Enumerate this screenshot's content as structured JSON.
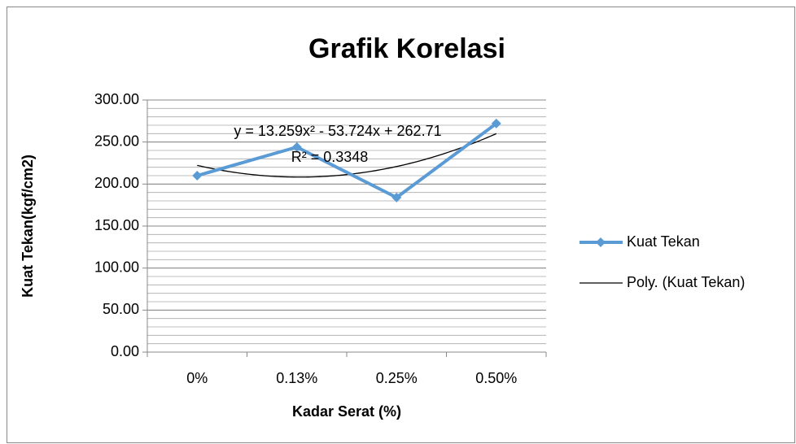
{
  "chart_data": {
    "type": "line",
    "title": "Grafik Korelasi",
    "x_label": "Kadar Serat (%)",
    "y_label": "Kuat Tekan(kgf/cm2)",
    "categories": [
      "0%",
      "0.13%",
      "0.25%",
      "0.50%"
    ],
    "series": [
      {
        "name": "Kuat Tekan",
        "color": "#5b9bd5",
        "values": [
          210,
          244,
          184,
          272
        ]
      }
    ],
    "trendline": {
      "name": "Poly. (Kuat Tekan)",
      "color": "#000000",
      "equation": "y = 13.259x² - 53.724x + 262.71",
      "r2_label": "R² = 0.3348",
      "coefficients": [
        13.259,
        -53.724,
        262.71
      ]
    },
    "ylim": [
      0,
      300
    ],
    "yticks": [
      {
        "value": 0,
        "label": "0.00"
      },
      {
        "value": 50,
        "label": "50.00"
      },
      {
        "value": 100,
        "label": "100.00"
      },
      {
        "value": 150,
        "label": "150.00"
      },
      {
        "value": 200,
        "label": "200.00"
      },
      {
        "value": 250,
        "label": "250.00"
      },
      {
        "value": 300,
        "label": "300.00"
      }
    ],
    "minor_grid": 10,
    "grid": true,
    "legend": "right"
  }
}
